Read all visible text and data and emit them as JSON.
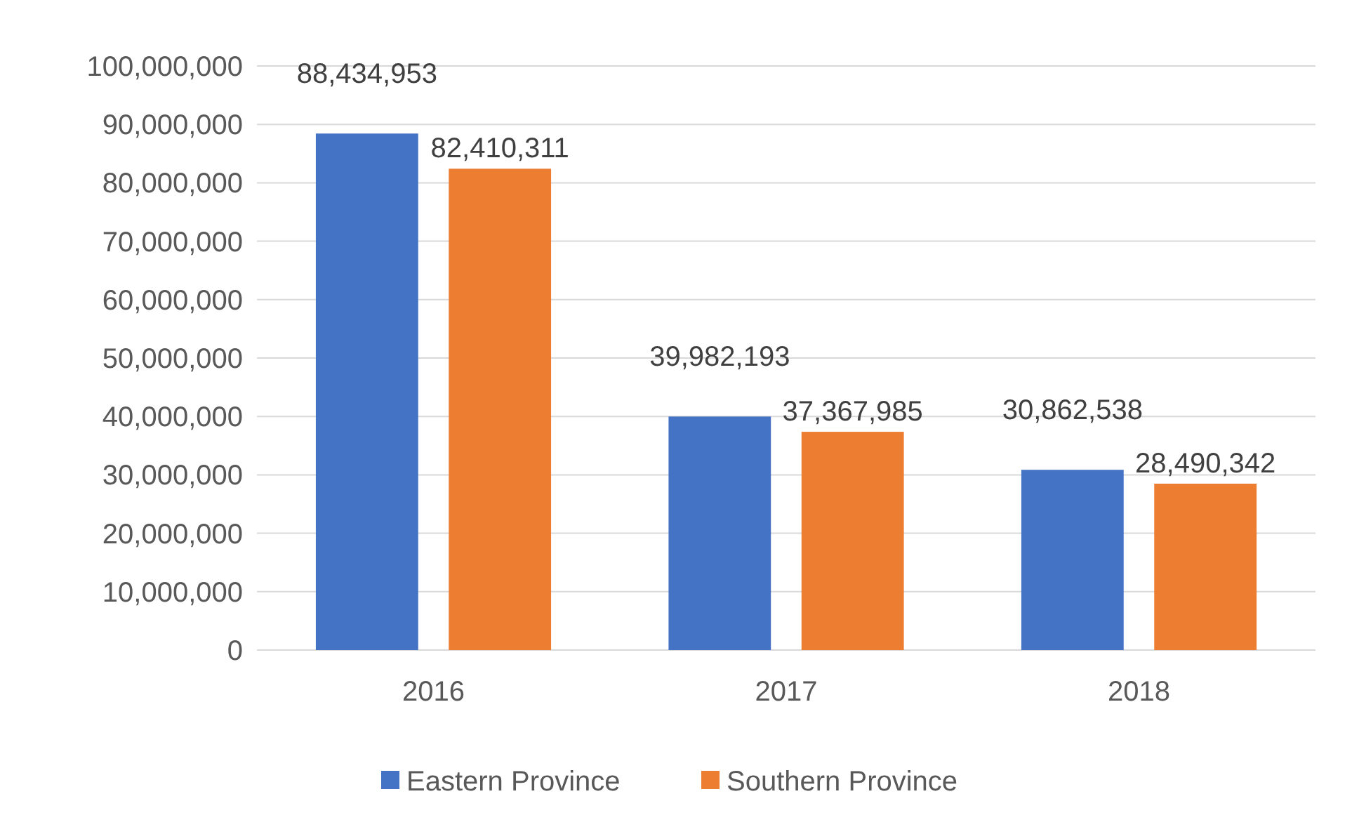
{
  "chart_data": {
    "type": "bar",
    "categories": [
      "2016",
      "2017",
      "2018"
    ],
    "series": [
      {
        "name": "Eastern Province",
        "color": "#4472c4",
        "values": [
          88434953,
          39982193,
          30862538
        ],
        "value_labels": [
          "88,434,953",
          "39,982,193",
          "30,862,538"
        ]
      },
      {
        "name": "Southern Province",
        "color": "#ed7d31",
        "values": [
          82410311,
          37367985,
          28490342
        ],
        "value_labels": [
          "82,410,311",
          "37,367,985",
          "28,490,342"
        ]
      }
    ],
    "ylim": [
      0,
      100000000
    ],
    "yticks": [
      {
        "value": 0,
        "label": "0"
      },
      {
        "value": 10000000,
        "label": "10,000,000"
      },
      {
        "value": 20000000,
        "label": "20,000,000"
      },
      {
        "value": 30000000,
        "label": "30,000,000"
      },
      {
        "value": 40000000,
        "label": "40,000,000"
      },
      {
        "value": 50000000,
        "label": "50,000,000"
      },
      {
        "value": 60000000,
        "label": "60,000,000"
      },
      {
        "value": 70000000,
        "label": "70,000,000"
      },
      {
        "value": 80000000,
        "label": "80,000,000"
      },
      {
        "value": 90000000,
        "label": "90,000,000"
      },
      {
        "value": 100000000,
        "label": "100,000,000"
      }
    ],
    "grid": "y",
    "legend": "bottom"
  }
}
